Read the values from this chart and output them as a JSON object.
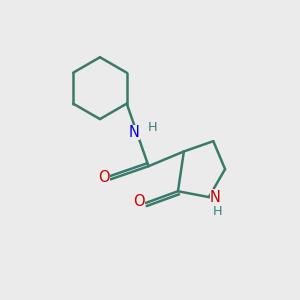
{
  "background_color": "#ebebeb",
  "bond_color": "#3a7a6a",
  "bond_width": 1.8,
  "N_amide_color": "#0000ee",
  "N_ring_color": "#cc0000",
  "O_color": "#cc0000",
  "H_color": "#3a8080",
  "figsize": [
    3.0,
    3.0
  ],
  "dpi": 100,
  "xlim": [
    0,
    10
  ],
  "ylim": [
    0,
    10
  ],
  "font_size": 10.5
}
